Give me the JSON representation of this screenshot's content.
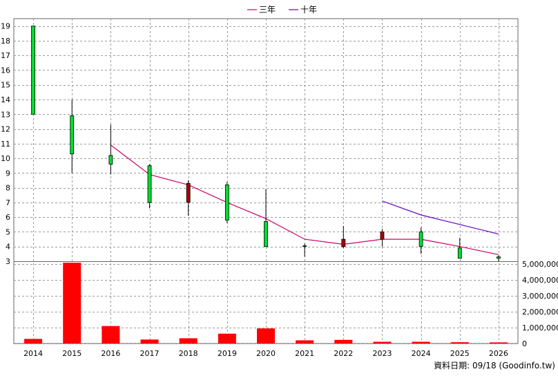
{
  "chart_data": {
    "type": "candlestick",
    "legend": [
      {
        "name": "三年",
        "color": "#cc0066"
      },
      {
        "name": "十年",
        "color": "#6600cc"
      }
    ],
    "legend_placement": "top-center",
    "footer": "資料日期: 09/18  (Goodinfo.tw)",
    "grid": true,
    "categories": [
      "2014",
      "2015",
      "2016",
      "2017",
      "2018",
      "2019",
      "2020",
      "2021",
      "2022",
      "2023",
      "2024",
      "2025",
      "2026"
    ],
    "price_axis": {
      "range": [
        3,
        19.5
      ],
      "ticks": [
        3,
        4,
        5,
        6,
        7,
        8,
        9,
        10,
        11,
        12,
        13,
        14,
        15,
        16,
        17,
        18,
        19
      ]
    },
    "volume_axis": {
      "range": [
        0,
        5000000
      ],
      "ticks": [
        0,
        1000000,
        2000000,
        3000000,
        4000000,
        5000000
      ],
      "tick_labels": [
        "0",
        "1,000,000",
        "2,000,000",
        "3,000,000",
        "4,000,000",
        "5,000,000"
      ]
    },
    "candles": [
      {
        "x": "2014",
        "open": 13.0,
        "close": 19.0,
        "high": 19.0,
        "low": 13.0
      },
      {
        "x": "2015",
        "open": 10.3,
        "close": 12.9,
        "high": 14.0,
        "low": 9.0
      },
      {
        "x": "2016",
        "open": 9.6,
        "close": 10.2,
        "high": 12.3,
        "low": 8.9
      },
      {
        "x": "2017",
        "open": 7.0,
        "close": 9.5,
        "high": 9.6,
        "low": 6.6
      },
      {
        "x": "2018",
        "open": 8.3,
        "close": 7.0,
        "high": 8.5,
        "low": 6.1
      },
      {
        "x": "2019",
        "open": 5.8,
        "close": 8.2,
        "high": 8.4,
        "low": 5.6
      },
      {
        "x": "2020",
        "open": 4.0,
        "close": 5.7,
        "high": 7.9,
        "low": 4.0
      },
      {
        "x": "2021",
        "open": 4.0,
        "close": 4.05,
        "high": 4.2,
        "low": 3.3
      },
      {
        "x": "2022",
        "open": 4.5,
        "close": 4.0,
        "high": 5.4,
        "low": 3.9
      },
      {
        "x": "2023",
        "open": 5.0,
        "close": 4.5,
        "high": 5.2,
        "low": 4.0
      },
      {
        "x": "2024",
        "open": 4.0,
        "close": 5.0,
        "high": 5.3,
        "low": 3.5
      },
      {
        "x": "2025",
        "open": 3.2,
        "close": 3.9,
        "high": 4.6,
        "low": 3.2
      },
      {
        "x": "2026",
        "open": 3.2,
        "close": 3.3,
        "high": 3.4,
        "low": 3.0
      }
    ],
    "series": [
      {
        "name": "三年",
        "color": "#cc0066",
        "points": [
          {
            "x": "2016",
            "y": 10.9
          },
          {
            "x": "2017",
            "y": 8.9
          },
          {
            "x": "2018",
            "y": 8.2
          },
          {
            "x": "2019",
            "y": 7.0
          },
          {
            "x": "2020",
            "y": 5.9
          },
          {
            "x": "2021",
            "y": 4.5
          },
          {
            "x": "2022",
            "y": 4.15
          },
          {
            "x": "2023",
            "y": 4.5
          },
          {
            "x": "2024",
            "y": 4.5
          },
          {
            "x": "2025",
            "y": 4.0
          },
          {
            "x": "2026",
            "y": 3.45
          }
        ]
      },
      {
        "name": "十年",
        "color": "#6600cc",
        "points": [
          {
            "x": "2023",
            "y": 7.1
          },
          {
            "x": "2024",
            "y": 6.15
          },
          {
            "x": "2025",
            "y": 5.5
          },
          {
            "x": "2026",
            "y": 4.85
          }
        ]
      }
    ],
    "volume": [
      290000,
      5080000,
      1100000,
      250000,
      330000,
      620000,
      950000,
      200000,
      230000,
      110000,
      110000,
      80000,
      70000
    ],
    "colors": {
      "up": "#00dd33",
      "down": "#aa0000",
      "volume": "#ff0000",
      "grid": "#999999"
    }
  }
}
